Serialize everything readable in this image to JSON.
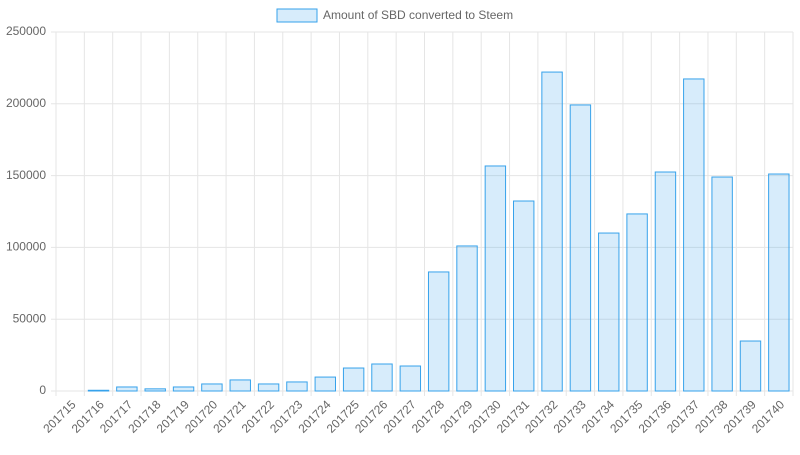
{
  "chart_data": {
    "type": "bar",
    "categories": [
      "201715",
      "201716",
      "201717",
      "201718",
      "201719",
      "201720",
      "201721",
      "201722",
      "201723",
      "201724",
      "201725",
      "201726",
      "201727",
      "201728",
      "201729",
      "201730",
      "201731",
      "201732",
      "201733",
      "201734",
      "201735",
      "201736",
      "201737",
      "201738",
      "201739",
      "201740"
    ],
    "series": [
      {
        "name": "Amount of SBD converted to Steem",
        "color": "#36a2eb",
        "values": [
          0,
          500,
          2800,
          1500,
          2800,
          4900,
          7700,
          4900,
          6300,
          9700,
          16000,
          18800,
          17400,
          82900,
          101000,
          156700,
          132300,
          222100,
          199200,
          110000,
          123300,
          152500,
          217300,
          149000,
          34800,
          151100
        ]
      }
    ],
    "ylim": [
      0,
      250000
    ],
    "yticks": [
      0,
      50000,
      100000,
      150000,
      200000,
      250000
    ],
    "grid": true,
    "legend": "top"
  }
}
